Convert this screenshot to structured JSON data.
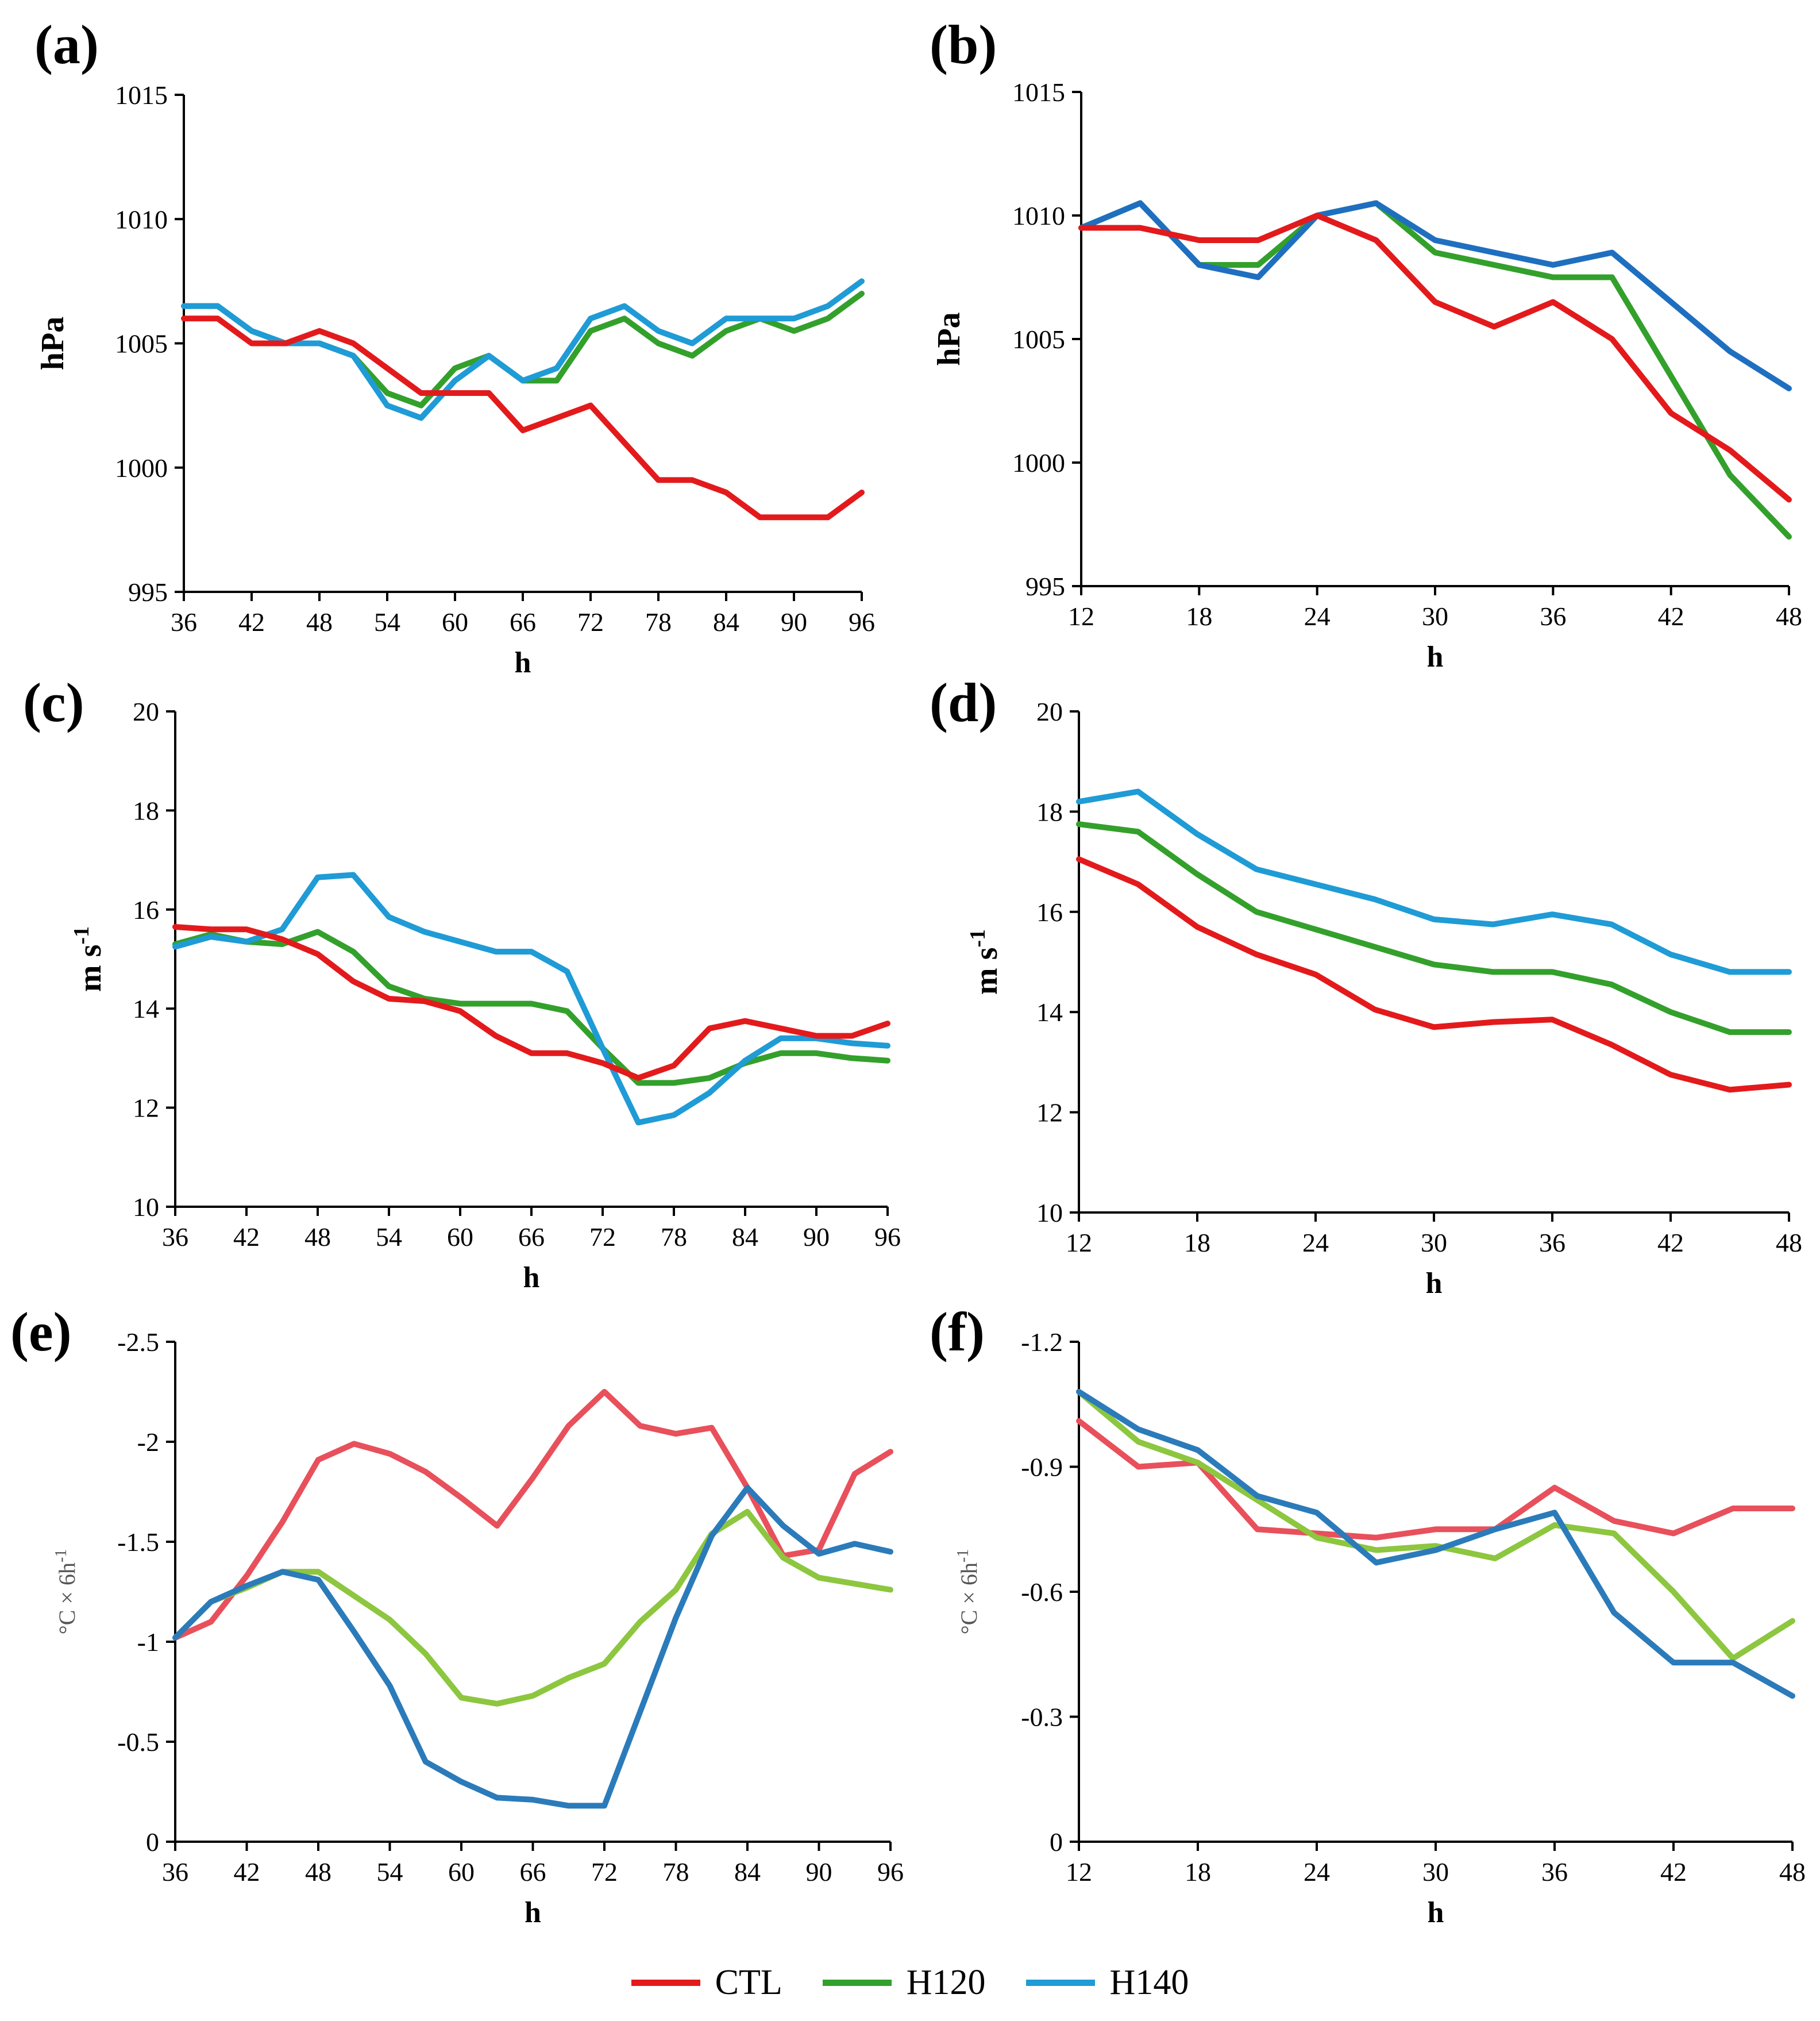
{
  "legend": {
    "series": [
      {
        "name": "CTL",
        "color": "#e31a1c"
      },
      {
        "name": "H120",
        "color": "#33a02c"
      },
      {
        "name": "H140",
        "color": "#1f9bd6"
      }
    ]
  },
  "chart_data": [
    {
      "panel": "(a)",
      "type": "line",
      "title": "",
      "xlabel": "h",
      "ylabel": "hPa",
      "ylabel_sup": "",
      "xlim": [
        36,
        96
      ],
      "ylim": [
        995,
        1015
      ],
      "reversed": false,
      "xticks": [
        36,
        42,
        48,
        54,
        60,
        66,
        72,
        78,
        84,
        90,
        96
      ],
      "yticks": [
        995,
        1000,
        1005,
        1010,
        1015
      ],
      "ytick_labels": [
        "995",
        "1000",
        "1005",
        "1010",
        "1015"
      ],
      "x": [
        36,
        39,
        42,
        45,
        48,
        51,
        54,
        57,
        60,
        63,
        66,
        69,
        72,
        75,
        78,
        81,
        84,
        87,
        90,
        93,
        96
      ],
      "series": [
        {
          "name": "H120",
          "color": "#33a02c",
          "values": [
            1006.5,
            1006.5,
            1005.5,
            1005.0,
            1005.0,
            1004.5,
            1003.0,
            1002.5,
            1004.0,
            1004.5,
            1003.5,
            1003.5,
            1005.5,
            1006.0,
            1005.0,
            1004.5,
            1005.5,
            1006.0,
            1005.5,
            1006.0,
            1007.0
          ]
        },
        {
          "name": "H140",
          "color": "#1f9bd6",
          "values": [
            1006.5,
            1006.5,
            1005.5,
            1005.0,
            1005.0,
            1004.5,
            1002.5,
            1002.0,
            1003.5,
            1004.5,
            1003.5,
            1004.0,
            1006.0,
            1006.5,
            1005.5,
            1005.0,
            1006.0,
            1006.0,
            1006.0,
            1006.5,
            1007.5
          ]
        },
        {
          "name": "CTL",
          "color": "#e31a1c",
          "values": [
            1006.0,
            1006.0,
            1005.0,
            1005.0,
            1005.5,
            1005.0,
            1004.0,
            1003.0,
            1003.0,
            1003.0,
            1001.5,
            1002.0,
            1002.5,
            1001.0,
            999.5,
            999.5,
            999.0,
            998.0,
            998.0,
            998.0,
            999.0
          ]
        }
      ]
    },
    {
      "panel": "(b)",
      "type": "line",
      "title": "",
      "xlabel": "h",
      "ylabel": "hPa",
      "ylabel_sup": "",
      "xlim": [
        12,
        48
      ],
      "ylim": [
        995,
        1015
      ],
      "reversed": false,
      "xticks": [
        12,
        18,
        24,
        30,
        36,
        42,
        48
      ],
      "yticks": [
        995,
        1000,
        1005,
        1010,
        1015
      ],
      "ytick_labels": [
        "995",
        "1000",
        "1005",
        "1010",
        "1015"
      ],
      "x": [
        12,
        15,
        18,
        21,
        24,
        27,
        30,
        33,
        36,
        39,
        42,
        45,
        48
      ],
      "series": [
        {
          "name": "H120",
          "color": "#33a02c",
          "values": [
            1009.5,
            1010.5,
            1008.0,
            1008.0,
            1010.0,
            1010.5,
            1008.5,
            1008.0,
            1007.5,
            1007.5,
            1003.5,
            999.5,
            997.0
          ]
        },
        {
          "name": "H140",
          "color": "#1f6fc0",
          "values": [
            1009.5,
            1010.5,
            1008.0,
            1007.5,
            1010.0,
            1010.5,
            1009.0,
            1008.5,
            1008.0,
            1008.5,
            1006.5,
            1004.5,
            1003.0
          ]
        },
        {
          "name": "CTL",
          "color": "#e31a1c",
          "values": [
            1009.5,
            1009.5,
            1009.0,
            1009.0,
            1010.0,
            1009.0,
            1006.5,
            1005.5,
            1006.5,
            1005.0,
            1002.0,
            1000.5,
            998.5
          ]
        }
      ]
    },
    {
      "panel": "(c)",
      "type": "line",
      "title": "",
      "xlabel": "h",
      "ylabel": "m s",
      "ylabel_sup": "-1",
      "xlim": [
        36,
        96
      ],
      "ylim": [
        10,
        20
      ],
      "reversed": false,
      "xticks": [
        36,
        42,
        48,
        54,
        60,
        66,
        72,
        78,
        84,
        90,
        96
      ],
      "yticks": [
        10,
        12,
        14,
        16,
        18,
        20
      ],
      "ytick_labels": [
        "10",
        "12",
        "14",
        "16",
        "18",
        "20"
      ],
      "x": [
        36,
        39,
        42,
        45,
        48,
        51,
        54,
        57,
        60,
        63,
        66,
        69,
        72,
        75,
        78,
        81,
        84,
        87,
        90,
        93,
        96
      ],
      "series": [
        {
          "name": "H120",
          "color": "#33a02c",
          "values": [
            15.3,
            15.5,
            15.35,
            15.3,
            15.55,
            15.15,
            14.45,
            14.2,
            14.1,
            14.1,
            14.1,
            13.95,
            13.2,
            12.5,
            12.5,
            12.6,
            12.9,
            13.1,
            13.1,
            13.0,
            12.95
          ]
        },
        {
          "name": "H140",
          "color": "#1f9bd6",
          "values": [
            15.25,
            15.45,
            15.35,
            15.6,
            16.65,
            16.7,
            15.85,
            15.55,
            15.35,
            15.15,
            15.15,
            14.75,
            13.2,
            11.7,
            11.85,
            12.3,
            12.95,
            13.4,
            13.4,
            13.3,
            13.25
          ]
        },
        {
          "name": "CTL",
          "color": "#e31a1c",
          "values": [
            15.65,
            15.6,
            15.6,
            15.4,
            15.1,
            14.55,
            14.2,
            14.15,
            13.95,
            13.45,
            13.1,
            13.1,
            12.9,
            12.6,
            12.85,
            13.6,
            13.75,
            13.6,
            13.45,
            13.45,
            13.7
          ]
        }
      ]
    },
    {
      "panel": "(d)",
      "type": "line",
      "title": "",
      "xlabel": "h",
      "ylabel": "m s",
      "ylabel_sup": "-1",
      "xlim": [
        12,
        48
      ],
      "ylim": [
        10,
        20
      ],
      "reversed": false,
      "xticks": [
        12,
        18,
        24,
        30,
        36,
        42,
        48
      ],
      "yticks": [
        10,
        12,
        14,
        16,
        18,
        20
      ],
      "ytick_labels": [
        "10",
        "12",
        "14",
        "16",
        "18",
        "20"
      ],
      "x": [
        12,
        15,
        18,
        21,
        24,
        27,
        30,
        33,
        36,
        39,
        42,
        45,
        48
      ],
      "series": [
        {
          "name": "H120",
          "color": "#33a02c",
          "values": [
            17.75,
            17.6,
            16.75,
            16.0,
            15.65,
            15.3,
            14.95,
            14.8,
            14.8,
            14.55,
            14.0,
            13.6,
            13.6
          ]
        },
        {
          "name": "H140",
          "color": "#1f9bd6",
          "values": [
            18.2,
            18.4,
            17.55,
            16.85,
            16.55,
            16.25,
            15.85,
            15.75,
            15.95,
            15.75,
            15.15,
            14.8,
            14.8
          ]
        },
        {
          "name": "CTL",
          "color": "#e31a1c",
          "values": [
            17.05,
            16.55,
            15.7,
            15.15,
            14.75,
            14.05,
            13.7,
            13.8,
            13.85,
            13.35,
            12.75,
            12.45,
            12.55
          ]
        }
      ]
    },
    {
      "panel": "(e)",
      "type": "line",
      "title": "",
      "xlabel": "h",
      "ylabel": "°C × 6h",
      "ylabel_sup": "-1",
      "xlim": [
        36,
        96
      ],
      "ylim": [
        0,
        -2.5
      ],
      "reversed": true,
      "xticks": [
        36,
        42,
        48,
        54,
        60,
        66,
        72,
        78,
        84,
        90,
        96
      ],
      "yticks": [
        0,
        -0.5,
        -1,
        -1.5,
        -2,
        -2.5
      ],
      "ytick_labels": [
        "0",
        "-0.5",
        "-1",
        "-1.5",
        "-2",
        "-2.5"
      ],
      "x": [
        36,
        39,
        42,
        45,
        48,
        51,
        54,
        57,
        60,
        63,
        66,
        69,
        72,
        75,
        78,
        81,
        84,
        87,
        90,
        93,
        96
      ],
      "series": [
        {
          "name": "CTL",
          "color": "#e8505b",
          "values": [
            -1.02,
            -1.1,
            -1.33,
            -1.6,
            -1.91,
            -1.99,
            -1.94,
            -1.85,
            -1.72,
            -1.58,
            -1.82,
            -2.08,
            -2.25,
            -2.08,
            -2.04,
            -2.07,
            -1.77,
            -1.43,
            -1.46,
            -1.84,
            -1.95
          ]
        },
        {
          "name": "H120",
          "color": "#8dc63f",
          "values": [
            -1.02,
            -1.2,
            -1.27,
            -1.35,
            -1.35,
            -1.23,
            -1.11,
            -0.94,
            -0.72,
            -0.69,
            -0.73,
            -0.82,
            -0.89,
            -1.1,
            -1.26,
            -1.54,
            -1.65,
            -1.42,
            -1.32,
            -1.29,
            -1.26
          ]
        },
        {
          "name": "H140",
          "color": "#2b7bba",
          "values": [
            -1.02,
            -1.2,
            -1.28,
            -1.35,
            -1.31,
            -1.05,
            -0.78,
            -0.4,
            -0.3,
            -0.22,
            -0.21,
            -0.18,
            -0.18,
            -0.65,
            -1.12,
            -1.53,
            -1.77,
            -1.58,
            -1.44,
            -1.49,
            -1.45
          ]
        }
      ]
    },
    {
      "panel": "(f)",
      "type": "line",
      "title": "",
      "xlabel": "h",
      "ylabel": "°C × 6h",
      "ylabel_sup": "-1",
      "xlim": [
        12,
        48
      ],
      "ylim": [
        0,
        -1.2
      ],
      "reversed": true,
      "xticks": [
        12,
        18,
        24,
        30,
        36,
        42,
        48
      ],
      "yticks": [
        0,
        -0.3,
        -0.6,
        -0.9,
        -1.2
      ],
      "ytick_labels": [
        "0",
        "-0.3",
        "-0.6",
        "-0.9",
        "-1.2"
      ],
      "x": [
        12,
        15,
        18,
        21,
        24,
        27,
        30,
        33,
        36,
        39,
        42,
        45,
        48
      ],
      "series": [
        {
          "name": "CTL",
          "color": "#e8505b",
          "values": [
            -1.01,
            -0.9,
            -0.91,
            -0.75,
            -0.74,
            -0.73,
            -0.75,
            -0.75,
            -0.85,
            -0.77,
            -0.74,
            -0.8,
            -0.8
          ]
        },
        {
          "name": "H120",
          "color": "#8dc63f",
          "values": [
            -1.08,
            -0.96,
            -0.91,
            -0.82,
            -0.73,
            -0.7,
            -0.71,
            -0.68,
            -0.76,
            -0.74,
            -0.6,
            -0.44,
            -0.53
          ]
        },
        {
          "name": "H140",
          "color": "#2b7bba",
          "values": [
            -1.08,
            -0.99,
            -0.94,
            -0.83,
            -0.79,
            -0.67,
            -0.7,
            -0.75,
            -0.79,
            -0.55,
            -0.43,
            -0.43,
            -0.35
          ]
        }
      ]
    }
  ]
}
